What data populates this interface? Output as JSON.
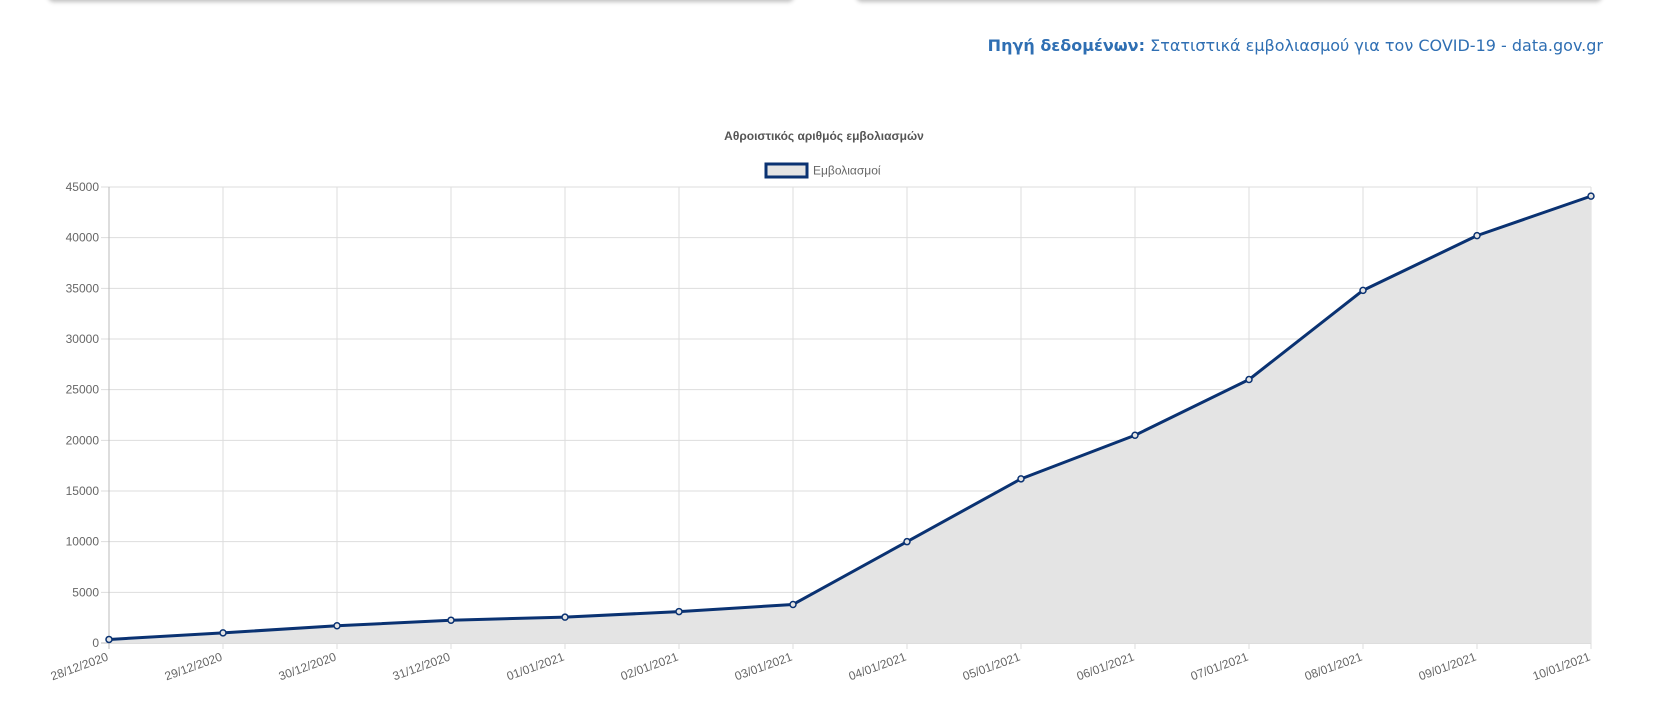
{
  "source": {
    "label": "Πηγή δεδομένων:",
    "text": "Στατιστικά εμβολιασμού για τον COVID-19 - data.gov.gr"
  },
  "colors": {
    "line": "#0a3272",
    "fill": "#e4e4e4",
    "grid": "#dddddd",
    "axis_text": "#666666",
    "title_text": "#555555",
    "source": "#2f6fb3"
  },
  "chart_data": {
    "type": "area",
    "title": "Αθροιστικός αριθμός εμβολιασμών",
    "xlabel": "",
    "ylabel": "",
    "legend_position": "top",
    "grid": true,
    "ylim": [
      0,
      45000
    ],
    "yticks": [
      0,
      5000,
      10000,
      15000,
      20000,
      25000,
      30000,
      35000,
      40000,
      45000
    ],
    "categories": [
      "28/12/2020",
      "29/12/2020",
      "30/12/2020",
      "31/12/2020",
      "01/01/2021",
      "02/01/2021",
      "03/01/2021",
      "04/01/2021",
      "05/01/2021",
      "06/01/2021",
      "07/01/2021",
      "08/01/2021",
      "09/01/2021",
      "10/01/2021"
    ],
    "series": [
      {
        "name": "Εμβολιασμοί",
        "values": [
          350,
          1000,
          1700,
          2250,
          2550,
          3100,
          3800,
          10000,
          16200,
          20500,
          26000,
          34800,
          40200,
          44100
        ]
      }
    ]
  }
}
